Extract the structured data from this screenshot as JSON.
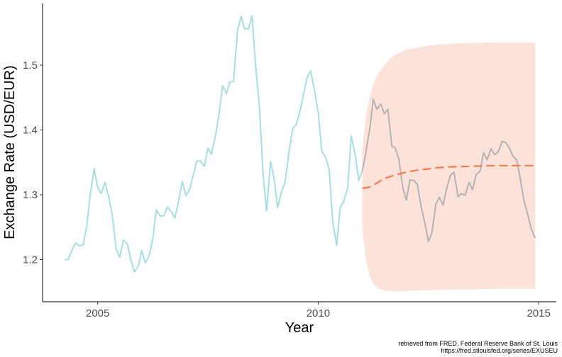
{
  "chart_data": {
    "type": "line",
    "xlabel": "Year",
    "ylabel": "Exchange Rate (USD/EUR)",
    "x_ticks": [
      2005,
      2010,
      2015
    ],
    "y_ticks": [
      1.2,
      1.3,
      1.4,
      1.5
    ],
    "xlim": [
      2003.75,
      2015.4
    ],
    "ylim": [
      1.135,
      1.595
    ],
    "grid": false,
    "series": [
      {
        "role": "historical",
        "color": "#a8dde0",
        "x": [
          2004.25,
          2004.33,
          2004.42,
          2004.5,
          2004.58,
          2004.67,
          2004.75,
          2004.83,
          2004.92,
          2005.0,
          2005.08,
          2005.17,
          2005.25,
          2005.33,
          2005.42,
          2005.5,
          2005.58,
          2005.67,
          2005.75,
          2005.83,
          2005.92,
          2006.0,
          2006.08,
          2006.17,
          2006.25,
          2006.33,
          2006.42,
          2006.5,
          2006.58,
          2006.67,
          2006.75,
          2006.83,
          2006.92,
          2007.0,
          2007.08,
          2007.17,
          2007.25,
          2007.33,
          2007.42,
          2007.5,
          2007.58,
          2007.67,
          2007.75,
          2007.83,
          2007.92,
          2008.0,
          2008.08,
          2008.17,
          2008.25,
          2008.33,
          2008.42,
          2008.5,
          2008.58,
          2008.67,
          2008.75,
          2008.83,
          2008.92,
          2009.0,
          2009.08,
          2009.17,
          2009.25,
          2009.33,
          2009.42,
          2009.5,
          2009.58,
          2009.67,
          2009.75,
          2009.83,
          2009.92,
          2010.0,
          2010.08,
          2010.17,
          2010.25,
          2010.33,
          2010.42,
          2010.5,
          2010.58,
          2010.67,
          2010.75,
          2010.83,
          2010.92,
          2011.0
        ],
        "y": [
          1.2,
          1.2,
          1.215,
          1.226,
          1.221,
          1.223,
          1.25,
          1.3,
          1.34,
          1.311,
          1.302,
          1.319,
          1.297,
          1.268,
          1.216,
          1.204,
          1.23,
          1.225,
          1.2,
          1.181,
          1.19,
          1.214,
          1.195,
          1.207,
          1.232,
          1.277,
          1.267,
          1.268,
          1.281,
          1.274,
          1.264,
          1.289,
          1.321,
          1.299,
          1.307,
          1.331,
          1.352,
          1.352,
          1.344,
          1.372,
          1.363,
          1.391,
          1.424,
          1.468,
          1.456,
          1.474,
          1.475,
          1.553,
          1.575,
          1.556,
          1.556,
          1.576,
          1.5,
          1.433,
          1.332,
          1.275,
          1.351,
          1.325,
          1.28,
          1.305,
          1.32,
          1.362,
          1.402,
          1.408,
          1.427,
          1.456,
          1.482,
          1.491,
          1.46,
          1.427,
          1.368,
          1.357,
          1.34,
          1.258,
          1.222,
          1.281,
          1.29,
          1.31,
          1.391,
          1.365,
          1.322,
          1.337
        ]
      },
      {
        "role": "actual",
        "color": "#b3b3b3",
        "x": [
          2011.0,
          2011.08,
          2011.17,
          2011.25,
          2011.33,
          2011.42,
          2011.5,
          2011.58,
          2011.67,
          2011.75,
          2011.83,
          2011.92,
          2012.0,
          2012.08,
          2012.17,
          2012.25,
          2012.33,
          2012.42,
          2012.5,
          2012.58,
          2012.67,
          2012.75,
          2012.83,
          2012.92,
          2013.0,
          2013.08,
          2013.17,
          2013.25,
          2013.33,
          2013.42,
          2013.5,
          2013.58,
          2013.67,
          2013.75,
          2013.83,
          2013.92,
          2014.0,
          2014.08,
          2014.17,
          2014.25,
          2014.33,
          2014.42,
          2014.5,
          2014.58,
          2014.67,
          2014.75,
          2014.83,
          2014.92
        ],
        "y": [
          1.337,
          1.365,
          1.402,
          1.447,
          1.432,
          1.44,
          1.425,
          1.432,
          1.375,
          1.372,
          1.355,
          1.31,
          1.292,
          1.323,
          1.322,
          1.316,
          1.283,
          1.256,
          1.228,
          1.242,
          1.286,
          1.296,
          1.284,
          1.312,
          1.33,
          1.335,
          1.297,
          1.302,
          1.299,
          1.319,
          1.308,
          1.331,
          1.336,
          1.365,
          1.354,
          1.371,
          1.362,
          1.366,
          1.382,
          1.381,
          1.373,
          1.359,
          1.354,
          1.326,
          1.29,
          1.27,
          1.248,
          1.233
        ]
      },
      {
        "role": "forecast",
        "color": "#f47c50",
        "style": "dashed",
        "x": [
          2011.0,
          2011.17,
          2011.33,
          2011.5,
          2011.67,
          2011.83,
          2012.0,
          2012.25,
          2012.5,
          2012.75,
          2013.0,
          2013.5,
          2014.0,
          2014.5,
          2014.92
        ],
        "y": [
          1.31,
          1.312,
          1.318,
          1.325,
          1.329,
          1.332,
          1.335,
          1.338,
          1.34,
          1.342,
          1.343,
          1.344,
          1.345,
          1.345,
          1.345
        ]
      }
    ],
    "forecast_band": {
      "color": "#fde2da",
      "x": [
        2011.0,
        2011.08,
        2011.17,
        2011.25,
        2011.33,
        2011.5,
        2011.67,
        2011.83,
        2012.0,
        2012.5,
        2013.0,
        2013.5,
        2014.0,
        2014.5,
        2014.92
      ],
      "lower": [
        1.25,
        1.2,
        1.175,
        1.163,
        1.157,
        1.152,
        1.151,
        1.151,
        1.152,
        1.153,
        1.154,
        1.154,
        1.155,
        1.155,
        1.155
      ],
      "upper": [
        1.37,
        1.42,
        1.45,
        1.47,
        1.483,
        1.5,
        1.512,
        1.519,
        1.524,
        1.53,
        1.533,
        1.534,
        1.535,
        1.535,
        1.535
      ]
    }
  },
  "caption": {
    "line1": "retrieved from FRED, Federal Reserve Bank of St. Louis",
    "line2": "https://fred.stlouisfed.org/series/EXUSEU"
  }
}
